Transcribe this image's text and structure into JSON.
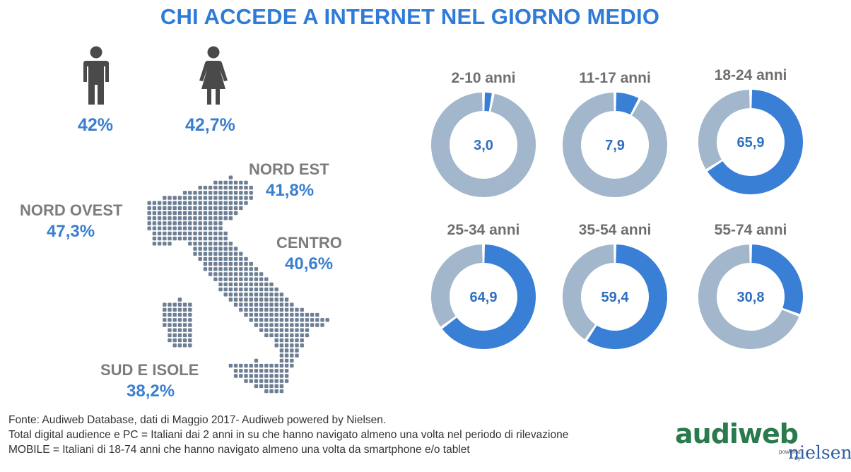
{
  "title": "CHI ACCEDE A INTERNET NEL GIORNO MEDIO",
  "gender": {
    "male": {
      "icon": "male-figure-icon",
      "value": "42%"
    },
    "female": {
      "icon": "female-figure-icon",
      "value": "42,7%"
    }
  },
  "regions": {
    "nord_ovest": {
      "name": "NORD OVEST",
      "value": "47,3%"
    },
    "nord_est": {
      "name": "NORD EST",
      "value": "41,8%"
    },
    "centro": {
      "name": "CENTRO",
      "value": "40,6%"
    },
    "sud_isole": {
      "name": "SUD E ISOLE",
      "value": "38,2%"
    }
  },
  "map_icon": "italy-dotted-map-icon",
  "chart_data": {
    "type": "pie",
    "variant": "donut",
    "categories": [
      "2-10 anni",
      "11-17 anni",
      "18-24 anni",
      "25-34 anni",
      "35-54 anni",
      "55-74 anni"
    ],
    "values": [
      3.0,
      7.9,
      65.9,
      64.9,
      59.4,
      30.8
    ],
    "value_labels": [
      "3,0",
      "7,9",
      "65,9",
      "64,9",
      "59,4",
      "30,8"
    ],
    "max": 100,
    "colors": {
      "value": "#3a7fd6",
      "remainder": "#a2b6cc"
    }
  },
  "footer": {
    "line1": "Fonte: Audiweb Database, dati di Maggio 2017- Audiweb powered by Nielsen.",
    "line2": "Total digital audience e PC = Italiani dai 2 anni in su che hanno navigato almeno una volta nel periodo di rilevazione",
    "line3": "MOBILE = Italiani di 18-74 anni che hanno navigato almeno una volta da smartphone e/o tablet"
  },
  "logo": {
    "main": "audiweb",
    "powered": "powered",
    "by": "by",
    "partner": "nielsen"
  }
}
